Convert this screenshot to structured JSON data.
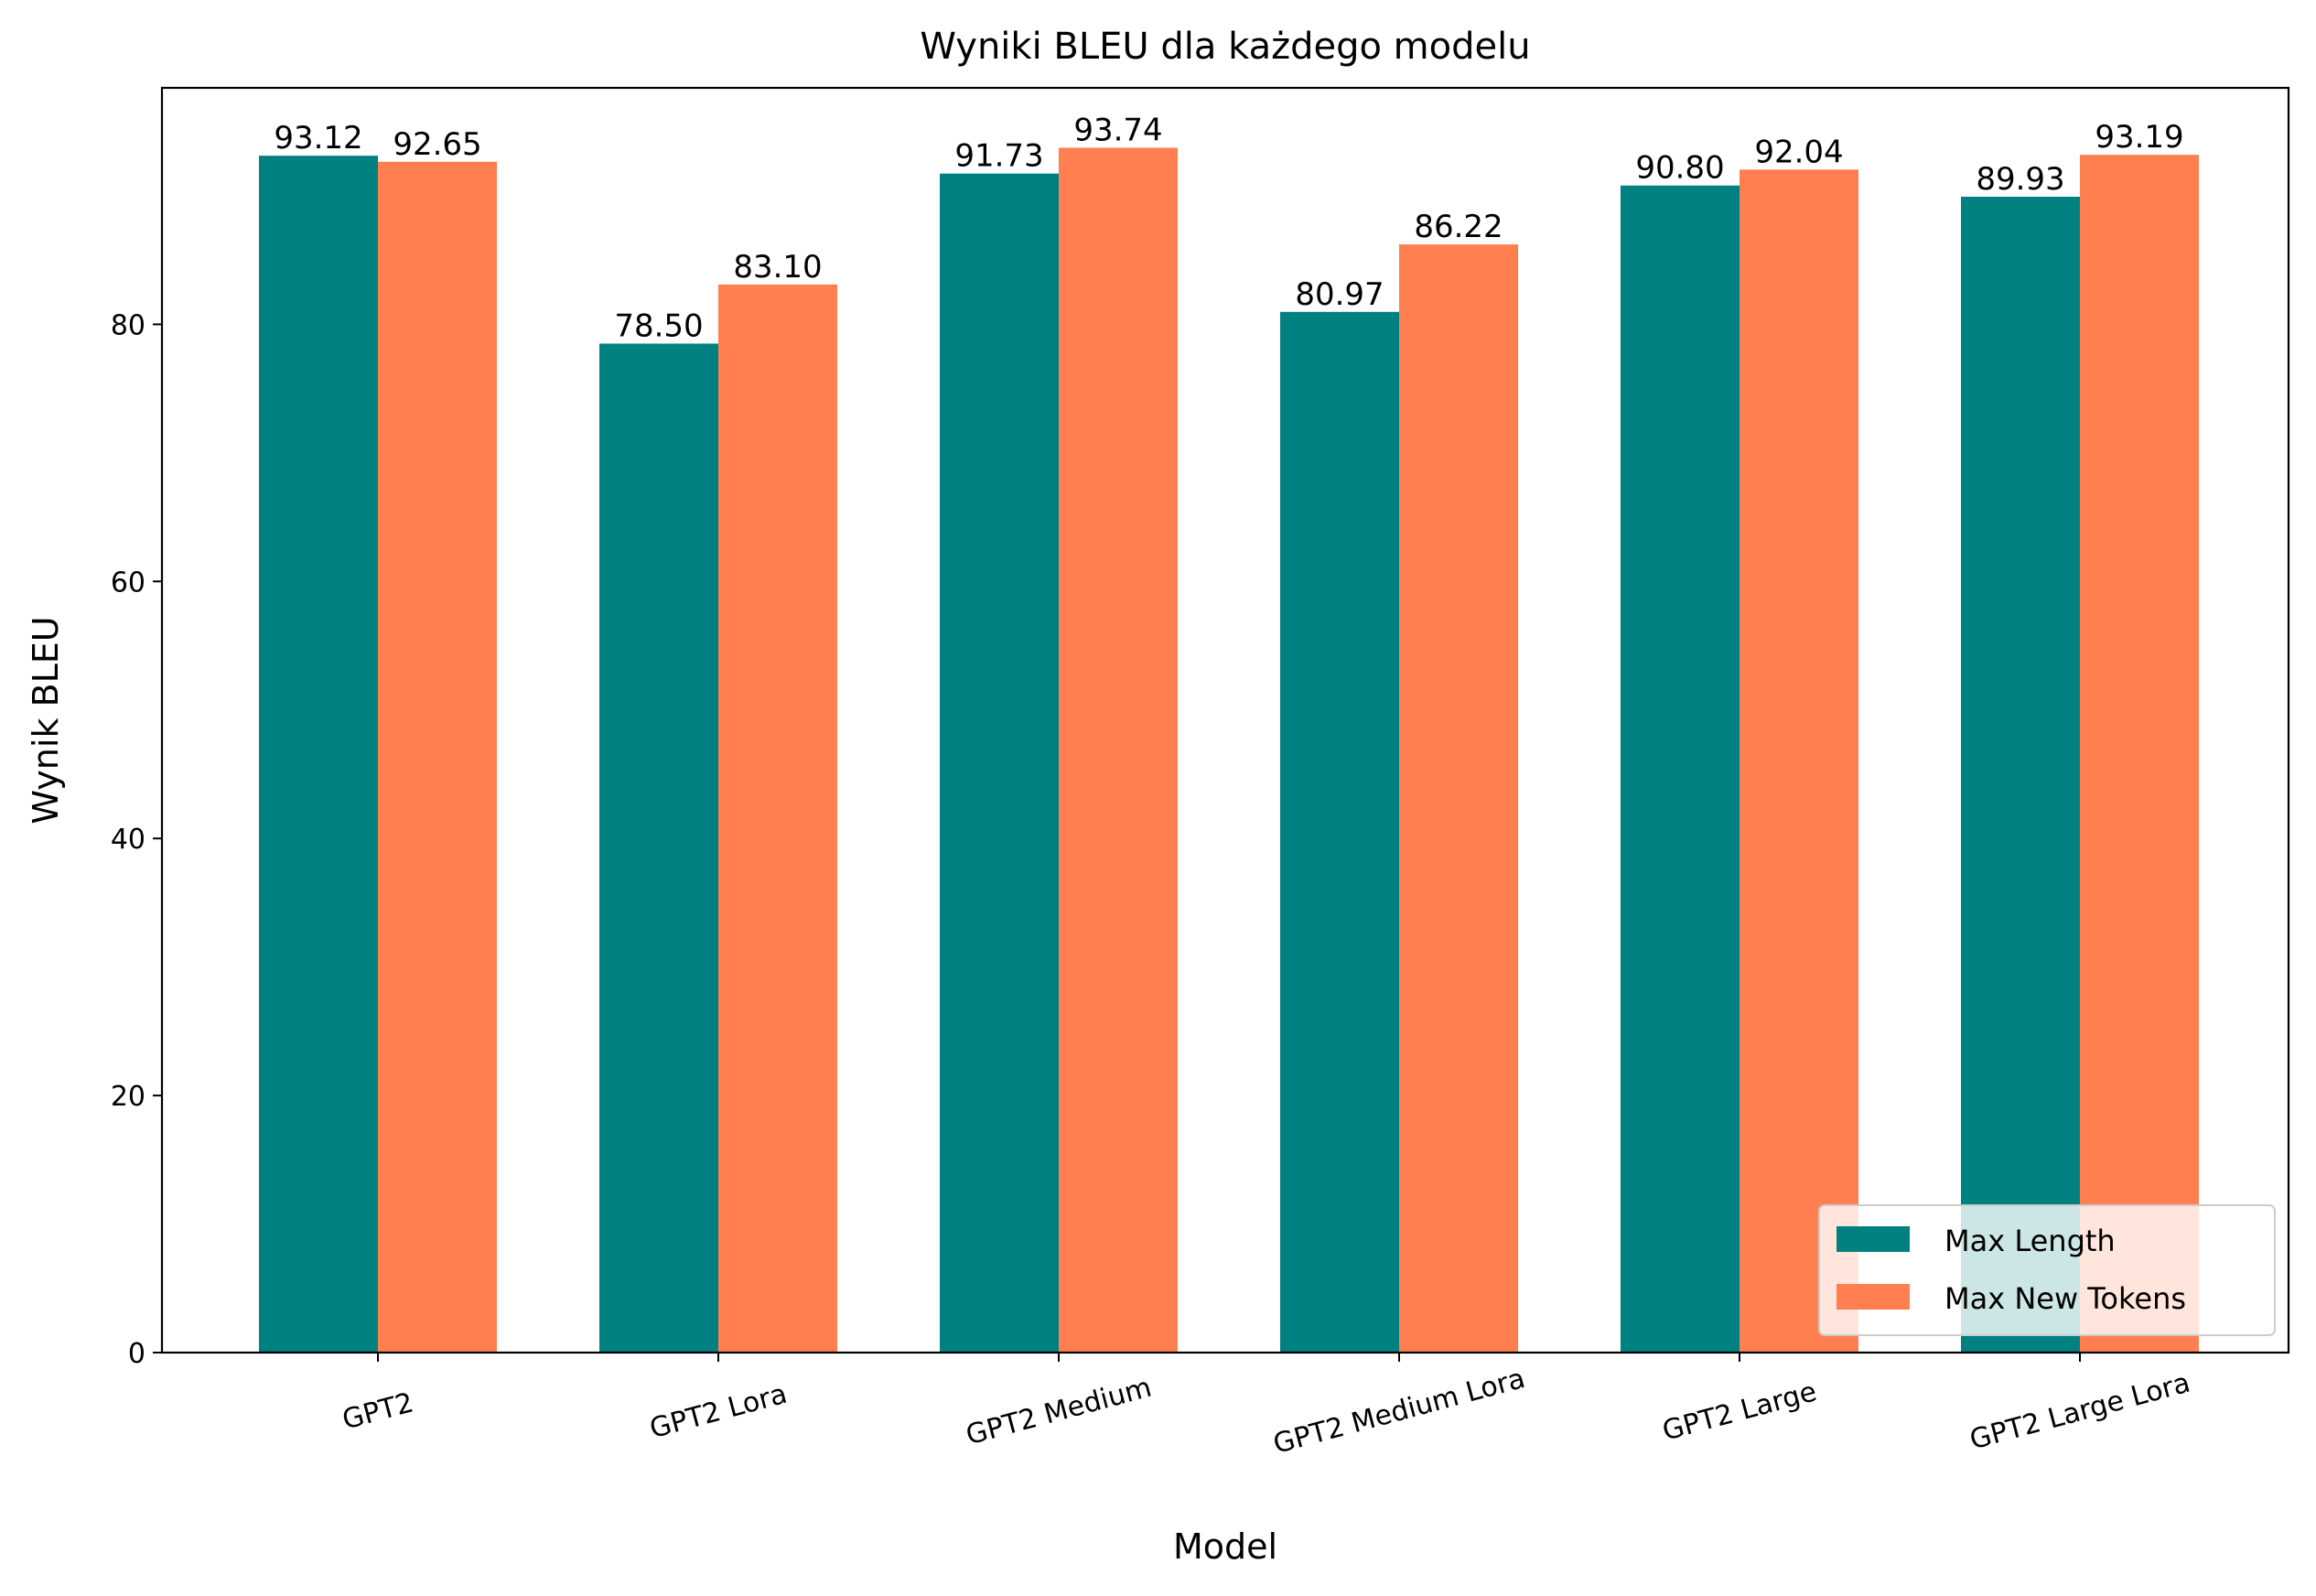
{
  "chart_data": {
    "type": "bar",
    "title": "Wyniki BLEU dla każdego modelu",
    "xlabel": "Model",
    "ylabel": "Wynik BLEU",
    "categories": [
      "GPT2",
      "GPT2 Lora",
      "GPT2 Medium",
      "GPT2 Medium Lora",
      "GPT2 Large",
      "GPT2 Large Lora"
    ],
    "series": [
      {
        "name": "Max Length",
        "color": "#008080",
        "values": [
          93.12,
          78.5,
          91.73,
          80.97,
          90.8,
          89.93
        ],
        "labels": [
          "93.12",
          "78.50",
          "91.73",
          "80.97",
          "90.80",
          "89.93"
        ]
      },
      {
        "name": "Max New Tokens",
        "color": "#FF7F50",
        "values": [
          92.65,
          83.1,
          93.74,
          86.22,
          92.04,
          93.19
        ],
        "labels": [
          "92.65",
          "83.10",
          "93.74",
          "86.22",
          "92.04",
          "93.19"
        ]
      }
    ],
    "ylim": [
      0,
      98.4
    ],
    "yticks": [
      0,
      20,
      40,
      60,
      80
    ],
    "ytick_labels": [
      "0",
      "20",
      "40",
      "60",
      "80"
    ],
    "xtick_rotation_deg": -15,
    "grid": false,
    "legend_position": "lower-right"
  }
}
